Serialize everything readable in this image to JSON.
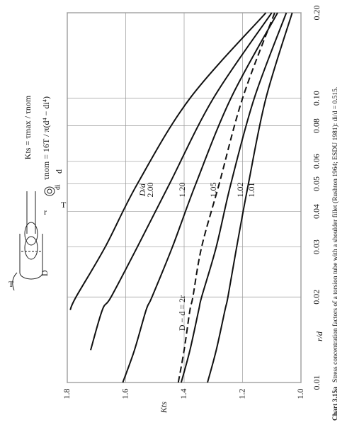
{
  "chart_data": {
    "type": "line",
    "caption_number": "Chart 3.15a",
    "caption": "Stress concentration factors of a torsion tube with a shoulder fillet (Rushton 1964; ESDU 1981): di/d = 0.515.",
    "x_label": "r/d",
    "y_label": "Kts",
    "formula_1": "Kts = τmax / τnom",
    "formula_2": "τnom = 16T / π(d⁴ − di⁴)",
    "legend_title": "D/d",
    "diagram_labels": [
      "T",
      "T",
      "D",
      "r",
      "d",
      "di"
    ],
    "x_scale": "log",
    "grid": true,
    "color": "#111111",
    "x": [
      0.01,
      0.013,
      0.018,
      0.02,
      0.03,
      0.05,
      0.1,
      0.2
    ],
    "series": [
      {
        "name": "2.00",
        "values": [
          null,
          null,
          1.79,
          1.77,
          1.67,
          1.56,
          1.38,
          1.12
        ]
      },
      {
        "name": "1.20",
        "values": [
          null,
          1.72,
          1.68,
          1.65,
          1.56,
          1.45,
          1.3,
          1.1
        ]
      },
      {
        "name": "1.05",
        "values": [
          1.61,
          1.57,
          1.53,
          1.51,
          1.44,
          1.36,
          1.24,
          1.08
        ]
      },
      {
        "name": "1.02",
        "values": [
          1.41,
          1.38,
          1.35,
          1.34,
          1.29,
          1.24,
          1.16,
          1.05
        ]
      },
      {
        "name": "1.01",
        "values": [
          1.32,
          1.29,
          1.26,
          1.25,
          1.22,
          1.18,
          1.12,
          1.03
        ]
      },
      {
        "name": "D − d = 2r",
        "dashed": true,
        "values": [
          1.42,
          1.4,
          1.38,
          1.37,
          1.34,
          1.28,
          1.2,
          1.09
        ]
      }
    ],
    "xlim": [
      0.01,
      0.2
    ],
    "xticks": [
      0.01,
      0.02,
      0.03,
      0.04,
      0.05,
      0.06,
      0.08,
      {
        "value": 0.1,
        "label": "0.10"
      },
      {
        "value": 0.2,
        "label": "0.20"
      }
    ],
    "ylim": [
      1.0,
      1.8
    ],
    "yticks": [
      {
        "value": 1,
        "label": "1.0"
      },
      1.2,
      1.4,
      1.6,
      1.8
    ]
  }
}
